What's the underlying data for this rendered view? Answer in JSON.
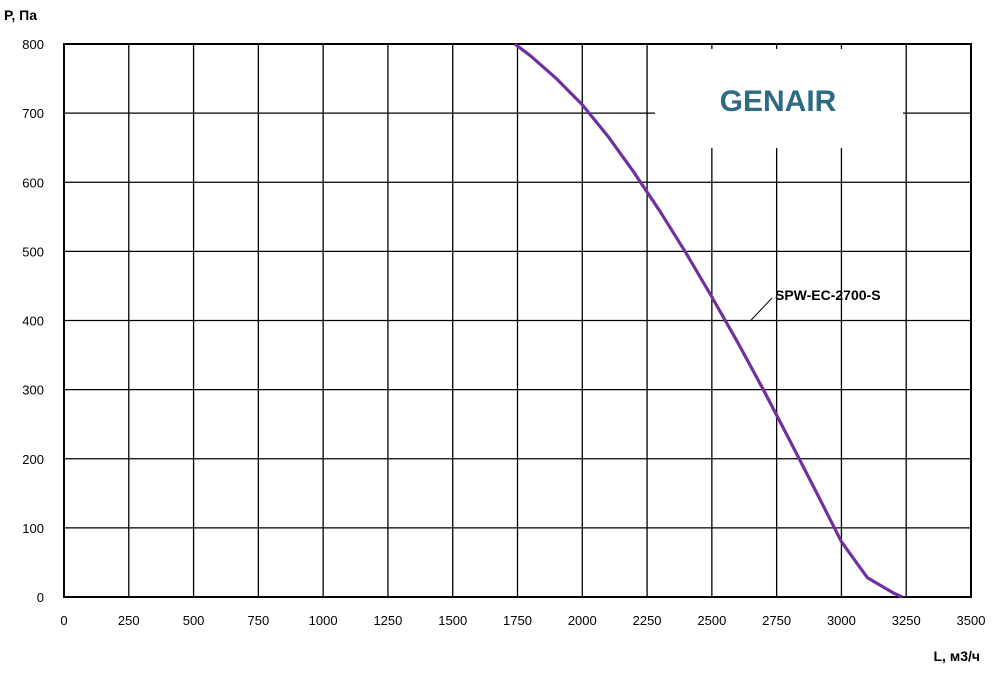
{
  "brand": {
    "text": "GENAIR",
    "color": "#2f6a84"
  },
  "chart_data": {
    "type": "line",
    "title": "",
    "xlabel": "L, м3/ч",
    "ylabel": "Р, Па",
    "xlim": [
      0,
      3500
    ],
    "ylim": [
      0,
      800
    ],
    "x_ticks": [
      0,
      250,
      500,
      750,
      1000,
      1250,
      1500,
      1750,
      2000,
      2250,
      2500,
      2750,
      3000,
      3250,
      3500
    ],
    "y_ticks": [
      0,
      100,
      200,
      300,
      400,
      500,
      600,
      700,
      800
    ],
    "grid": true,
    "legend": "none",
    "series": [
      {
        "name": "SPW-EC-2700-S",
        "color": "#7030a0",
        "x": [
          1740,
          1800,
          1900,
          2000,
          2100,
          2200,
          2300,
          2400,
          2500,
          2600,
          2700,
          2800,
          2900,
          3000,
          3100,
          3200,
          3235
        ],
        "y": [
          800,
          783,
          750,
          712,
          666,
          614,
          558,
          498,
          434,
          368,
          299,
          227,
          154,
          80,
          28,
          6,
          0
        ]
      }
    ],
    "annotations": [
      {
        "text": "SPW-EC-2700-S",
        "series": 0,
        "x": 2650,
        "y": 400
      }
    ]
  }
}
